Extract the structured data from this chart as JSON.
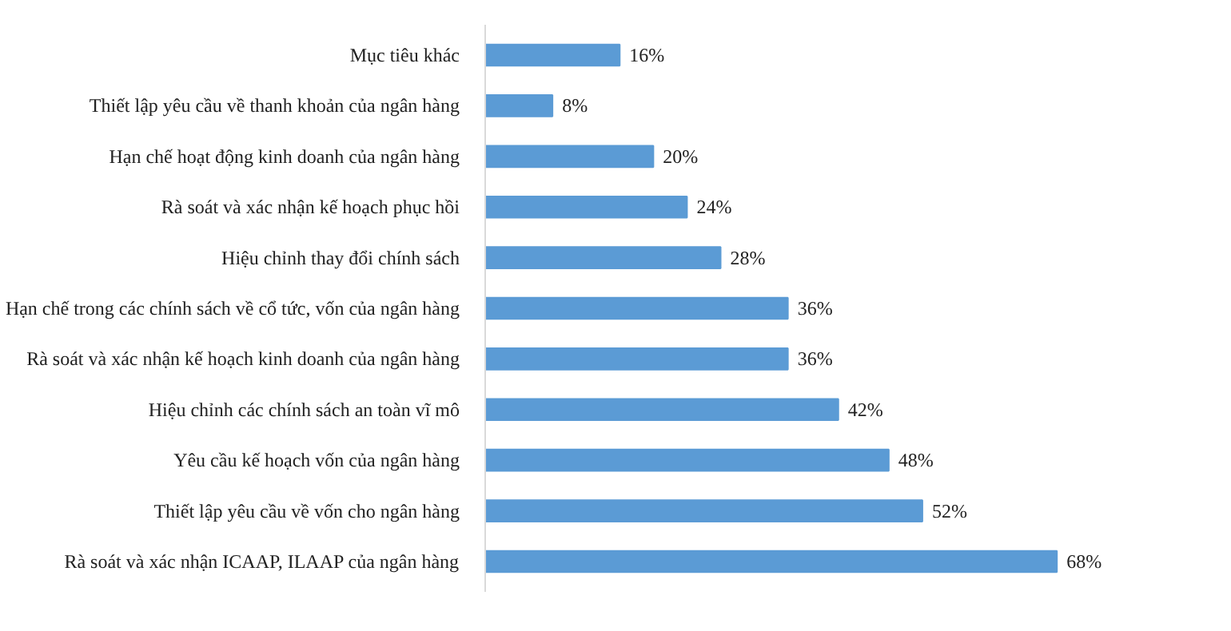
{
  "chart_data": {
    "type": "bar",
    "orientation": "horizontal",
    "categories": [
      "Mục tiêu khác",
      "Thiết lập yêu cầu về thanh khoản của ngân hàng",
      "Hạn chế hoạt động kinh doanh của ngân hàng",
      "Rà soát và xác nhận kế hoạch phục hồi",
      "Hiệu chỉnh thay đổi chính sách",
      "Hạn chế trong các chính sách về cổ tức, vốn của ngân hàng",
      "Rà soát và xác nhận kế hoạch kinh doanh của ngân hàng",
      "Hiệu chỉnh các chính sách an toàn vĩ mô",
      "Yêu cầu kế hoạch vốn của ngân hàng",
      "Thiết lập yêu cầu về vốn cho ngân hàng",
      "Rà soát và xác nhận ICAAP, ILAAP của ngân hàng"
    ],
    "values": [
      16,
      8,
      20,
      24,
      28,
      36,
      36,
      42,
      48,
      52,
      68
    ],
    "value_labels": [
      "16%",
      "8%",
      "20%",
      "24%",
      "28%",
      "36%",
      "36%",
      "42%",
      "48%",
      "52%",
      "68%"
    ],
    "color": "#5b9bd5",
    "grid": false,
    "tick_labels": "y"
  }
}
